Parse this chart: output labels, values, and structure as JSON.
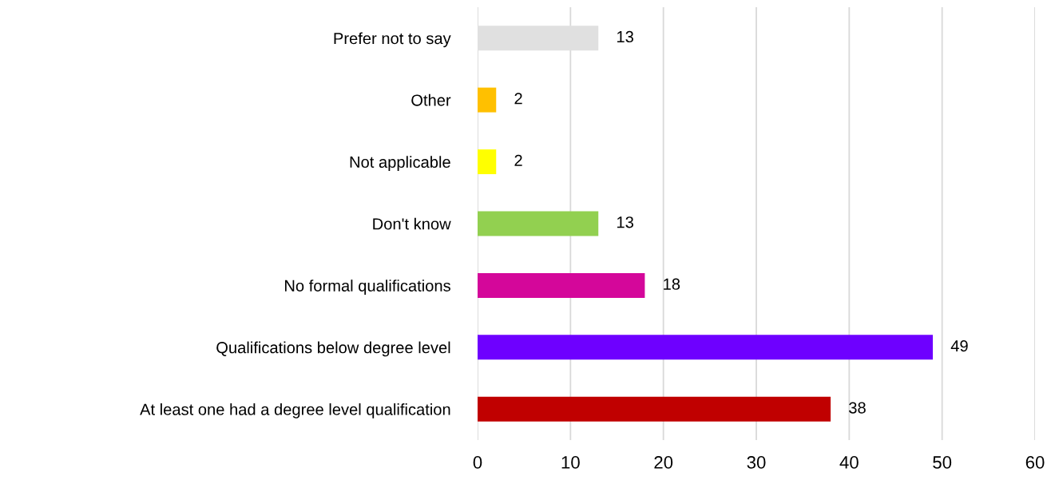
{
  "chart_data": {
    "type": "bar",
    "orientation": "horizontal",
    "categories": [
      "Prefer not to say",
      "Other",
      "Not applicable",
      "Don't know",
      "No formal qualifications",
      "Qualifications below degree level",
      "At least one had a degree level qualification"
    ],
    "values": [
      13,
      2,
      2,
      13,
      18,
      49,
      38
    ],
    "colors": [
      "#e0e0e0",
      "#ffc000",
      "#ffff00",
      "#92d050",
      "#d4079a",
      "#6e00ff",
      "#c00000"
    ],
    "xlim": [
      0,
      60
    ],
    "xticks": [
      0,
      10,
      20,
      30,
      40,
      50,
      60
    ],
    "grid": "x",
    "data_labels": true
  }
}
